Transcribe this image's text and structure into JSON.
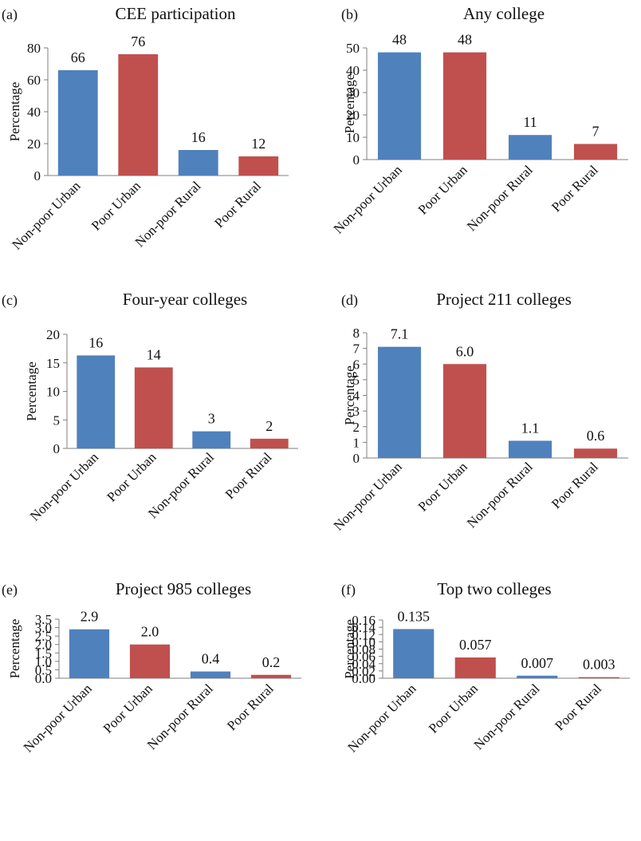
{
  "figure": {
    "colors": {
      "blue": "#4f81bd",
      "red": "#c0504d"
    },
    "ylabel": "Percentage"
  },
  "chart_data": [
    {
      "type": "bar",
      "panel": "(a)",
      "title": "CEE participation",
      "ylabel": "Percentage",
      "categories": [
        "Non-poor Urban",
        "Poor Urban",
        "Non-poor Rural",
        "Poor Rural"
      ],
      "values": [
        66,
        76,
        16,
        12
      ],
      "value_labels": [
        "66",
        "76",
        "16",
        "12"
      ],
      "yticks": [
        "0",
        "20",
        "40",
        "60",
        "80"
      ],
      "ylim": [
        0,
        80
      ]
    },
    {
      "type": "bar",
      "panel": "(b)",
      "title": "Any college",
      "ylabel": "Percentage",
      "categories": [
        "Non-poor Urban",
        "Poor Urban",
        "Non-poor Rural",
        "Poor Rural"
      ],
      "values": [
        48,
        48,
        11,
        7
      ],
      "value_labels": [
        "48",
        "48",
        "11",
        "7"
      ],
      "yticks": [
        "0",
        "10",
        "20",
        "30",
        "40",
        "50"
      ],
      "ylim": [
        0,
        50
      ]
    },
    {
      "type": "bar",
      "panel": "(c)",
      "title": "Four-year colleges",
      "ylabel": "Percentage",
      "categories": [
        "Non-poor Urban",
        "Poor Urban",
        "Non-poor Rural",
        "Poor Rural"
      ],
      "values": [
        16.3,
        14.2,
        3,
        1.7
      ],
      "value_labels": [
        "16",
        "14",
        "3",
        "2"
      ],
      "yticks": [
        "0",
        "5",
        "10",
        "15",
        "20"
      ],
      "ylim": [
        0,
        20
      ]
    },
    {
      "type": "bar",
      "panel": "(d)",
      "title": "Project 211 colleges",
      "ylabel": "Percentage",
      "categories": [
        "Non-poor Urban",
        "Poor Urban",
        "Non-poor Rural",
        "Poor Rural"
      ],
      "values": [
        7.1,
        6.0,
        1.1,
        0.6
      ],
      "value_labels": [
        "7.1",
        "6.0",
        "1.1",
        "0.6"
      ],
      "yticks": [
        "0",
        "1",
        "2",
        "3",
        "4",
        "5",
        "6",
        "7",
        "8"
      ],
      "ylim": [
        0,
        8
      ]
    },
    {
      "type": "bar",
      "panel": "(e)",
      "title": "Project 985 colleges",
      "ylabel": "Percentage",
      "categories": [
        "Non-poor Urban",
        "Poor Urban",
        "Non-poor Rural",
        "Poor Rural"
      ],
      "values": [
        2.9,
        2.0,
        0.4,
        0.2
      ],
      "value_labels": [
        "2.9",
        "2.0",
        "0.4",
        "0.2"
      ],
      "yticks": [
        "0.0",
        "0.5",
        "1.0",
        "1.5",
        "2.0",
        "2.5",
        "3.0",
        "3.5"
      ],
      "ylim": [
        0,
        3.5
      ]
    },
    {
      "type": "bar",
      "panel": "(f)",
      "title": "Top two colleges",
      "ylabel": "Percentage",
      "categories": [
        "Non-poor Urban",
        "Poor Urban",
        "Non-poor Rural",
        "Poor Rural"
      ],
      "values": [
        0.135,
        0.057,
        0.007,
        0.003
      ],
      "value_labels": [
        "0.135",
        "0.057",
        "0.007",
        "0.003"
      ],
      "yticks": [
        "0.00",
        "0.02",
        "0.04",
        "0.06",
        "0.08",
        "0.10",
        "0.12",
        "0.14",
        "0.16"
      ],
      "ylim": [
        0,
        0.16
      ]
    }
  ]
}
